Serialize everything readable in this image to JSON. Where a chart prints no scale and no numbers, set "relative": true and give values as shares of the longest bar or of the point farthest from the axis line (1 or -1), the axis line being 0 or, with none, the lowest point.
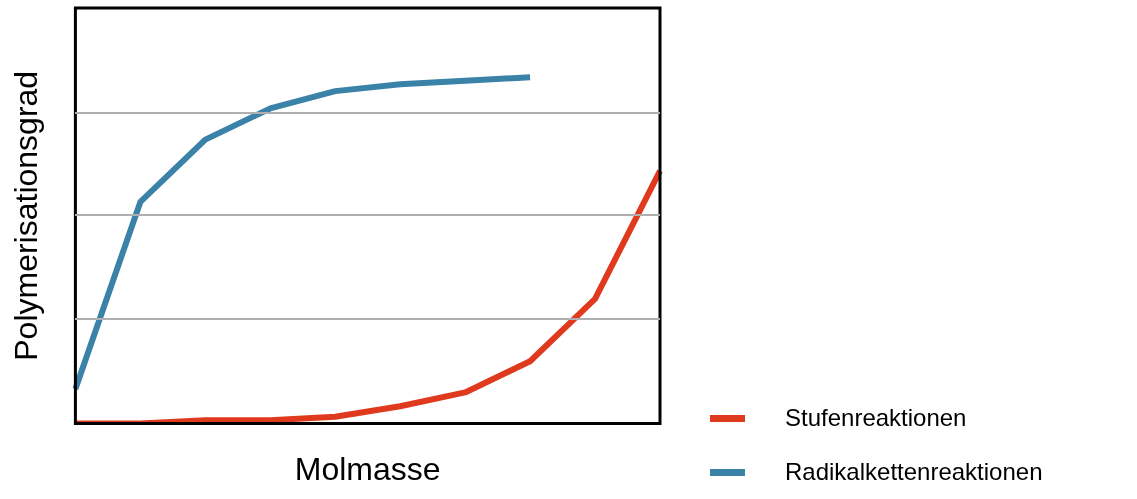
{
  "chart_data": {
    "type": "line",
    "xlabel": "Molmasse",
    "ylabel": "Polymerisationsgrad",
    "relative": true,
    "legend": "bottom right",
    "marker": "none",
    "line_style": "solid",
    "categories": [
      null,
      null,
      null,
      null,
      null,
      null,
      null,
      null,
      null,
      null
    ],
    "series": [
      {
        "name": "Stufenreaktionen",
        "color": "#e03a1e",
        "values": [
          0,
          0,
          0.01,
          0.01,
          0.02,
          0.05,
          0.09,
          0.18,
          0.36,
          0.73
        ]
      },
      {
        "name": "Radikalkettenreaktionen",
        "color": "#3a82a8",
        "values": [
          0.1,
          0.64,
          0.82,
          0.91,
          0.96,
          0.98,
          0.99,
          1.0,
          null,
          null
        ]
      }
    ]
  }
}
